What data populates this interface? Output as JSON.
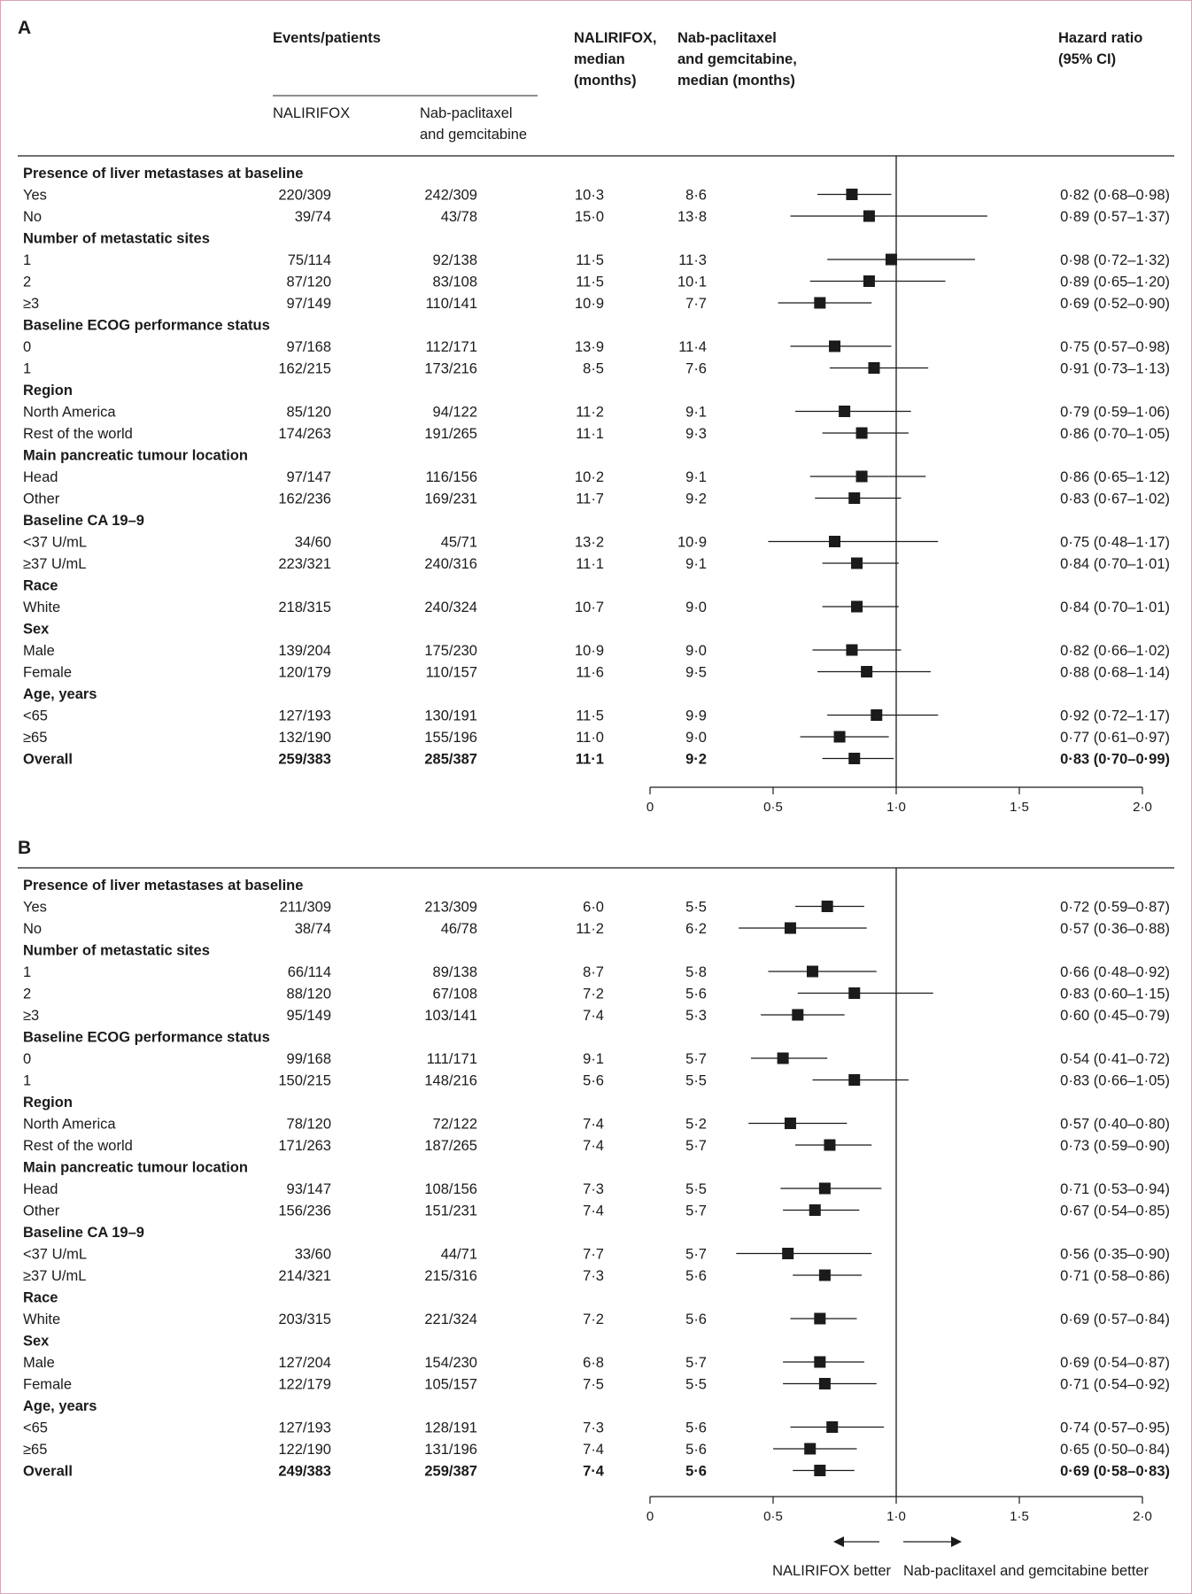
{
  "header": {
    "events_patients": "Events/patients",
    "nalirifox": "NALIRIFOX",
    "nab_line1": "Nab-paclitaxel",
    "nab_line2": "and gemcitabine",
    "median_nali_l1": "NALIRIFOX,",
    "median_nali_l2": "median",
    "median_nali_l3": "(months)",
    "median_nab_l1": "Nab-paclitaxel",
    "median_nab_l2": "and gemcitabine,",
    "median_nab_l3": "median (months)",
    "hr_l1": "Hazard ratio",
    "hr_l2": "(95% CI)"
  },
  "footer": {
    "left_better": "NALIRIFOX better",
    "right_better": "Nab-paclitaxel and gemcitabine better"
  },
  "chart_data": [
    {
      "type": "forest",
      "panel": "A",
      "xlim": [
        0,
        2.0
      ],
      "reference_line": 1.0,
      "x_ticks": [
        {
          "v": 0,
          "label": "0"
        },
        {
          "v": 0.5,
          "label": "0·5"
        },
        {
          "v": 1.0,
          "label": "1·0"
        },
        {
          "v": 1.5,
          "label": "1·5"
        },
        {
          "v": 2.0,
          "label": "2·0"
        }
      ],
      "rows": [
        {
          "kind": "header",
          "label": "Presence of liver metastases at baseline"
        },
        {
          "kind": "data",
          "label": "Yes",
          "nali": "220/309",
          "nab": "242/309",
          "m_nali": "10·3",
          "m_nab": "8·6",
          "hr": 0.82,
          "lo": 0.68,
          "hi": 0.98,
          "hr_text": "0·82 (0·68–0·98)"
        },
        {
          "kind": "data",
          "label": "No",
          "nali": "39/74",
          "nab": "43/78",
          "m_nali": "15·0",
          "m_nab": "13·8",
          "hr": 0.89,
          "lo": 0.57,
          "hi": 1.37,
          "hr_text": "0·89 (0·57–1·37)"
        },
        {
          "kind": "header",
          "label": "Number of metastatic sites"
        },
        {
          "kind": "data",
          "label": "1",
          "nali": "75/114",
          "nab": "92/138",
          "m_nali": "11·5",
          "m_nab": "11·3",
          "hr": 0.98,
          "lo": 0.72,
          "hi": 1.32,
          "hr_text": "0·98 (0·72–1·32)"
        },
        {
          "kind": "data",
          "label": "2",
          "nali": "87/120",
          "nab": "83/108",
          "m_nali": "11·5",
          "m_nab": "10·1",
          "hr": 0.89,
          "lo": 0.65,
          "hi": 1.2,
          "hr_text": "0·89 (0·65–1·20)"
        },
        {
          "kind": "data",
          "label": "≥3",
          "nali": "97/149",
          "nab": "110/141",
          "m_nali": "10·9",
          "m_nab": "7·7",
          "hr": 0.69,
          "lo": 0.52,
          "hi": 0.9,
          "hr_text": "0·69 (0·52–0·90)"
        },
        {
          "kind": "header",
          "label": "Baseline ECOG performance status"
        },
        {
          "kind": "data",
          "label": "0",
          "nali": "97/168",
          "nab": "112/171",
          "m_nali": "13·9",
          "m_nab": "11·4",
          "hr": 0.75,
          "lo": 0.57,
          "hi": 0.98,
          "hr_text": "0·75 (0·57–0·98)"
        },
        {
          "kind": "data",
          "label": "1",
          "nali": "162/215",
          "nab": "173/216",
          "m_nali": "8·5",
          "m_nab": "7·6",
          "hr": 0.91,
          "lo": 0.73,
          "hi": 1.13,
          "hr_text": "0·91 (0·73–1·13)"
        },
        {
          "kind": "header",
          "label": "Region"
        },
        {
          "kind": "data",
          "label": "North America",
          "nali": "85/120",
          "nab": "94/122",
          "m_nali": "11·2",
          "m_nab": "9·1",
          "hr": 0.79,
          "lo": 0.59,
          "hi": 1.06,
          "hr_text": "0·79 (0·59–1·06)"
        },
        {
          "kind": "data",
          "label": "Rest of the world",
          "nali": "174/263",
          "nab": "191/265",
          "m_nali": "11·1",
          "m_nab": "9·3",
          "hr": 0.86,
          "lo": 0.7,
          "hi": 1.05,
          "hr_text": "0·86 (0·70–1·05)"
        },
        {
          "kind": "header",
          "label": "Main pancreatic tumour location"
        },
        {
          "kind": "data",
          "label": "Head",
          "nali": "97/147",
          "nab": "116/156",
          "m_nali": "10·2",
          "m_nab": "9·1",
          "hr": 0.86,
          "lo": 0.65,
          "hi": 1.12,
          "hr_text": "0·86 (0·65–1·12)"
        },
        {
          "kind": "data",
          "label": "Other",
          "nali": "162/236",
          "nab": "169/231",
          "m_nali": "11·7",
          "m_nab": "9·2",
          "hr": 0.83,
          "lo": 0.67,
          "hi": 1.02,
          "hr_text": "0·83 (0·67–1·02)"
        },
        {
          "kind": "header",
          "label": "Baseline CA 19–9"
        },
        {
          "kind": "data",
          "label": "<37 U/mL",
          "nali": "34/60",
          "nab": "45/71",
          "m_nali": "13·2",
          "m_nab": "10·9",
          "hr": 0.75,
          "lo": 0.48,
          "hi": 1.17,
          "hr_text": "0·75 (0·48–1·17)"
        },
        {
          "kind": "data",
          "label": "≥37 U/mL",
          "nali": "223/321",
          "nab": "240/316",
          "m_nali": "11·1",
          "m_nab": "9·1",
          "hr": 0.84,
          "lo": 0.7,
          "hi": 1.01,
          "hr_text": "0·84 (0·70–1·01)"
        },
        {
          "kind": "header",
          "label": "Race"
        },
        {
          "kind": "data",
          "label": "White",
          "nali": "218/315",
          "nab": "240/324",
          "m_nali": "10·7",
          "m_nab": "9·0",
          "hr": 0.84,
          "lo": 0.7,
          "hi": 1.01,
          "hr_text": "0·84 (0·70–1·01)"
        },
        {
          "kind": "header",
          "label": "Sex"
        },
        {
          "kind": "data",
          "label": "Male",
          "nali": "139/204",
          "nab": "175/230",
          "m_nali": "10·9",
          "m_nab": "9·0",
          "hr": 0.82,
          "lo": 0.66,
          "hi": 1.02,
          "hr_text": "0·82 (0·66–1·02)"
        },
        {
          "kind": "data",
          "label": "Female",
          "nali": "120/179",
          "nab": "110/157",
          "m_nali": "11·6",
          "m_nab": "9·5",
          "hr": 0.88,
          "lo": 0.68,
          "hi": 1.14,
          "hr_text": "0·88 (0·68–1·14)"
        },
        {
          "kind": "header",
          "label": "Age, years"
        },
        {
          "kind": "data",
          "label": "<65",
          "nali": "127/193",
          "nab": "130/191",
          "m_nali": "11·5",
          "m_nab": "9·9",
          "hr": 0.92,
          "lo": 0.72,
          "hi": 1.17,
          "hr_text": "0·92 (0·72–1·17)"
        },
        {
          "kind": "data",
          "label": "≥65",
          "nali": "132/190",
          "nab": "155/196",
          "m_nali": "11·0",
          "m_nab": "9·0",
          "hr": 0.77,
          "lo": 0.61,
          "hi": 0.97,
          "hr_text": "0·77 (0·61–0·97)"
        },
        {
          "kind": "overall",
          "label": "Overall",
          "nali": "259/383",
          "nab": "285/387",
          "m_nali": "11·1",
          "m_nab": "9·2",
          "hr": 0.83,
          "lo": 0.7,
          "hi": 0.99,
          "hr_text": "0·83 (0·70–0·99)"
        }
      ]
    },
    {
      "type": "forest",
      "panel": "B",
      "xlim": [
        0,
        2.0
      ],
      "reference_line": 1.0,
      "x_ticks": [
        {
          "v": 0,
          "label": "0"
        },
        {
          "v": 0.5,
          "label": "0·5"
        },
        {
          "v": 1.0,
          "label": "1·0"
        },
        {
          "v": 1.5,
          "label": "1·5"
        },
        {
          "v": 2.0,
          "label": "2·0"
        }
      ],
      "rows": [
        {
          "kind": "header",
          "label": "Presence of liver metastases at baseline"
        },
        {
          "kind": "data",
          "label": "Yes",
          "nali": "211/309",
          "nab": "213/309",
          "m_nali": "6·0",
          "m_nab": "5·5",
          "hr": 0.72,
          "lo": 0.59,
          "hi": 0.87,
          "hr_text": "0·72 (0·59–0·87)"
        },
        {
          "kind": "data",
          "label": "No",
          "nali": "38/74",
          "nab": "46/78",
          "m_nali": "11·2",
          "m_nab": "6·2",
          "hr": 0.57,
          "lo": 0.36,
          "hi": 0.88,
          "hr_text": "0·57 (0·36–0·88)"
        },
        {
          "kind": "header",
          "label": "Number of metastatic sites"
        },
        {
          "kind": "data",
          "label": "1",
          "nali": "66/114",
          "nab": "89/138",
          "m_nali": "8·7",
          "m_nab": "5·8",
          "hr": 0.66,
          "lo": 0.48,
          "hi": 0.92,
          "hr_text": "0·66 (0·48–0·92)"
        },
        {
          "kind": "data",
          "label": "2",
          "nali": "88/120",
          "nab": "67/108",
          "m_nali": "7·2",
          "m_nab": "5·6",
          "hr": 0.83,
          "lo": 0.6,
          "hi": 1.15,
          "hr_text": "0·83 (0·60–1·15)"
        },
        {
          "kind": "data",
          "label": "≥3",
          "nali": "95/149",
          "nab": "103/141",
          "m_nali": "7·4",
          "m_nab": "5·3",
          "hr": 0.6,
          "lo": 0.45,
          "hi": 0.79,
          "hr_text": "0·60 (0·45–0·79)"
        },
        {
          "kind": "header",
          "label": "Baseline ECOG performance status"
        },
        {
          "kind": "data",
          "label": "0",
          "nali": "99/168",
          "nab": "111/171",
          "m_nali": "9·1",
          "m_nab": "5·7",
          "hr": 0.54,
          "lo": 0.41,
          "hi": 0.72,
          "hr_text": "0·54 (0·41–0·72)"
        },
        {
          "kind": "data",
          "label": "1",
          "nali": "150/215",
          "nab": "148/216",
          "m_nali": "5·6",
          "m_nab": "5·5",
          "hr": 0.83,
          "lo": 0.66,
          "hi": 1.05,
          "hr_text": "0·83 (0·66–1·05)"
        },
        {
          "kind": "header",
          "label": "Region"
        },
        {
          "kind": "data",
          "label": "North America",
          "nali": "78/120",
          "nab": "72/122",
          "m_nali": "7·4",
          "m_nab": "5·2",
          "hr": 0.57,
          "lo": 0.4,
          "hi": 0.8,
          "hr_text": "0·57 (0·40–0·80)"
        },
        {
          "kind": "data",
          "label": "Rest of the world",
          "nali": "171/263",
          "nab": "187/265",
          "m_nali": "7·4",
          "m_nab": "5·7",
          "hr": 0.73,
          "lo": 0.59,
          "hi": 0.9,
          "hr_text": "0·73 (0·59–0·90)"
        },
        {
          "kind": "header",
          "label": "Main pancreatic tumour location"
        },
        {
          "kind": "data",
          "label": "Head",
          "nali": "93/147",
          "nab": "108/156",
          "m_nali": "7·3",
          "m_nab": "5·5",
          "hr": 0.71,
          "lo": 0.53,
          "hi": 0.94,
          "hr_text": "0·71 (0·53–0·94)"
        },
        {
          "kind": "data",
          "label": "Other",
          "nali": "156/236",
          "nab": "151/231",
          "m_nali": "7·4",
          "m_nab": "5·7",
          "hr": 0.67,
          "lo": 0.54,
          "hi": 0.85,
          "hr_text": "0·67 (0·54–0·85)"
        },
        {
          "kind": "header",
          "label": "Baseline CA 19–9"
        },
        {
          "kind": "data",
          "label": "<37 U/mL",
          "nali": "33/60",
          "nab": "44/71",
          "m_nali": "7·7",
          "m_nab": "5·7",
          "hr": 0.56,
          "lo": 0.35,
          "hi": 0.9,
          "hr_text": "0·56 (0·35–0·90)"
        },
        {
          "kind": "data",
          "label": "≥37 U/mL",
          "nali": "214/321",
          "nab": "215/316",
          "m_nali": "7·3",
          "m_nab": "5·6",
          "hr": 0.71,
          "lo": 0.58,
          "hi": 0.86,
          "hr_text": "0·71 (0·58–0·86)"
        },
        {
          "kind": "header",
          "label": "Race"
        },
        {
          "kind": "data",
          "label": "White",
          "nali": "203/315",
          "nab": "221/324",
          "m_nali": "7·2",
          "m_nab": "5·6",
          "hr": 0.69,
          "lo": 0.57,
          "hi": 0.84,
          "hr_text": "0·69 (0·57–0·84)"
        },
        {
          "kind": "header",
          "label": "Sex"
        },
        {
          "kind": "data",
          "label": "Male",
          "nali": "127/204",
          "nab": "154/230",
          "m_nali": "6·8",
          "m_nab": "5·7",
          "hr": 0.69,
          "lo": 0.54,
          "hi": 0.87,
          "hr_text": "0·69 (0·54–0·87)"
        },
        {
          "kind": "data",
          "label": "Female",
          "nali": "122/179",
          "nab": "105/157",
          "m_nali": "7·5",
          "m_nab": "5·5",
          "hr": 0.71,
          "lo": 0.54,
          "hi": 0.92,
          "hr_text": "0·71 (0·54–0·92)"
        },
        {
          "kind": "header",
          "label": "Age, years"
        },
        {
          "kind": "data",
          "label": "<65",
          "nali": "127/193",
          "nab": "128/191",
          "m_nali": "7·3",
          "m_nab": "5·6",
          "hr": 0.74,
          "lo": 0.57,
          "hi": 0.95,
          "hr_text": "0·74 (0·57–0·95)"
        },
        {
          "kind": "data",
          "label": "≥65",
          "nali": "122/190",
          "nab": "131/196",
          "m_nali": "7·4",
          "m_nab": "5·6",
          "hr": 0.65,
          "lo": 0.5,
          "hi": 0.84,
          "hr_text": "0·65 (0·50–0·84)"
        },
        {
          "kind": "overall",
          "label": "Overall",
          "nali": "249/383",
          "nab": "259/387",
          "m_nali": "7·4",
          "m_nab": "5·6",
          "hr": 0.69,
          "lo": 0.58,
          "hi": 0.83,
          "hr_text": "0·69 (0·58–0·83)"
        }
      ]
    }
  ]
}
